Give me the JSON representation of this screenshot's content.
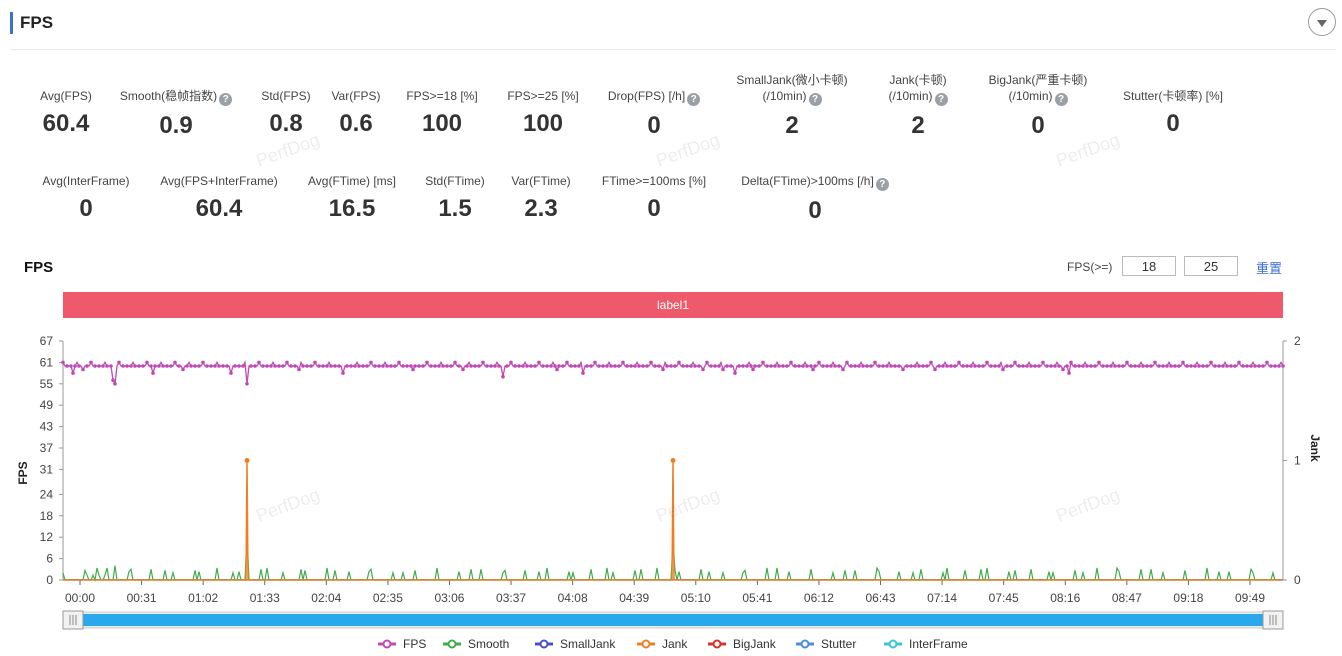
{
  "header": {
    "title": "FPS"
  },
  "metrics_row1": [
    {
      "label": "Avg(FPS)",
      "value": "60.4",
      "help": false
    },
    {
      "label": "Smooth(稳帧指数)",
      "value": "0.9",
      "help": true
    },
    {
      "label": "Std(FPS)",
      "value": "0.8",
      "help": false
    },
    {
      "label": "Var(FPS)",
      "value": "0.6",
      "help": false
    },
    {
      "label": "FPS>=18 [%]",
      "value": "100",
      "help": false
    },
    {
      "label": "FPS>=25 [%]",
      "value": "100",
      "help": false
    },
    {
      "label": "Drop(FPS) [/h]",
      "value": "0",
      "help": true
    },
    {
      "label": "SmallJank(微小卡顿)",
      "label2": "(/10min)",
      "value": "2",
      "help": true
    },
    {
      "label": "Jank(卡顿)",
      "label2": "(/10min)",
      "value": "2",
      "help": true
    },
    {
      "label": "BigJank(严重卡顿)",
      "label2": "(/10min)",
      "value": "0",
      "help": true
    },
    {
      "label": "Stutter(卡顿率) [%]",
      "value": "0",
      "help": false
    }
  ],
  "metrics_row2": [
    {
      "label": "Avg(InterFrame)",
      "value": "0",
      "help": false
    },
    {
      "label": "Avg(FPS+InterFrame)",
      "value": "60.4",
      "help": false
    },
    {
      "label": "Avg(FTime) [ms]",
      "value": "16.5",
      "help": false
    },
    {
      "label": "Std(FTime)",
      "value": "1.5",
      "help": false
    },
    {
      "label": "Var(FTime)",
      "value": "2.3",
      "help": false
    },
    {
      "label": "FTime>=100ms [%]",
      "value": "0",
      "help": false
    },
    {
      "label": "Delta(FTime)>100ms [/h]",
      "value": "0",
      "help": true
    }
  ],
  "help_glyph": "?",
  "watermark": "PerfDog",
  "chart_title": "FPS",
  "threshold": {
    "label": "FPS(>=)",
    "low": "18",
    "high": "25",
    "reset_label": "重置"
  },
  "label_bar": {
    "text": "label1",
    "color": "#ee5a6b"
  },
  "chart_data": {
    "type": "line",
    "ylabel": "FPS",
    "y2label": "Jank",
    "y_ticks": [
      0,
      6,
      12,
      18,
      24,
      31,
      37,
      43,
      49,
      55,
      61,
      67
    ],
    "y2_ticks": [
      0,
      1,
      2
    ],
    "ylim": [
      0,
      67
    ],
    "y2lim": [
      0,
      2
    ],
    "x_ticks": [
      "00:00",
      "00:31",
      "01:02",
      "01:33",
      "02:04",
      "02:35",
      "03:06",
      "03:37",
      "04:08",
      "04:39",
      "05:10",
      "05:41",
      "06:12",
      "06:43",
      "07:14",
      "07:45",
      "08:16",
      "08:47",
      "09:18",
      "09:49"
    ],
    "x_range_seconds": [
      0,
      610
    ],
    "fps_baseline": 60,
    "fps_dips": [
      [
        5,
        58
      ],
      [
        10,
        59
      ],
      [
        25,
        56
      ],
      [
        26,
        55
      ],
      [
        45,
        58
      ],
      [
        60,
        59
      ],
      [
        84,
        58
      ],
      [
        92,
        55
      ],
      [
        118,
        59
      ],
      [
        140,
        58
      ],
      [
        175,
        59
      ],
      [
        200,
        59
      ],
      [
        220,
        57
      ],
      [
        247,
        59
      ],
      [
        260,
        58
      ],
      [
        300,
        59
      ],
      [
        320,
        59
      ],
      [
        330,
        59
      ],
      [
        336,
        58
      ],
      [
        345,
        59
      ],
      [
        375,
        59
      ],
      [
        390,
        59
      ],
      [
        420,
        59
      ],
      [
        436,
        59
      ],
      [
        470,
        59
      ],
      [
        500,
        59
      ],
      [
        503,
        58
      ]
    ],
    "jank_spikes": [
      [
        92,
        1
      ],
      [
        305,
        1
      ]
    ],
    "smooth_spikes": [
      [
        92,
        0.38
      ],
      [
        305,
        0.32
      ]
    ],
    "series": [
      {
        "name": "FPS",
        "color": "#c149b4"
      },
      {
        "name": "Smooth",
        "color": "#3fad4a"
      },
      {
        "name": "SmallJank",
        "color": "#4b50c7"
      },
      {
        "name": "Jank",
        "color": "#f07f24"
      },
      {
        "name": "BigJank",
        "color": "#d8302c"
      },
      {
        "name": "Stutter",
        "color": "#4a8fdb"
      },
      {
        "name": "InterFrame",
        "color": "#39c7d8"
      }
    ],
    "grid": false,
    "legend": "bottom-center"
  }
}
